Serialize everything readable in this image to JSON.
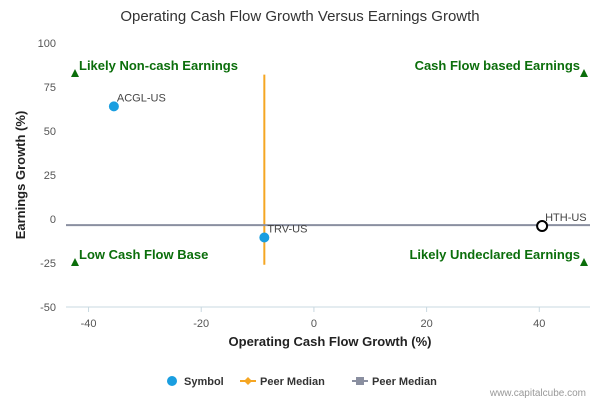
{
  "chart_data": {
    "type": "scatter",
    "title": "Operating Cash Flow Growth Versus Earnings Growth",
    "xlabel": "Operating Cash Flow Growth (%)",
    "ylabel": "Earnings Growth (%)",
    "xlim": [
      -44,
      49
    ],
    "ylim": [
      -50,
      100
    ],
    "x_ticks": [
      -40,
      -20,
      0,
      20,
      40
    ],
    "y_ticks": [
      100,
      75,
      50,
      25,
      0,
      -25,
      -50
    ],
    "grid": false,
    "points": [
      {
        "label": "ACGL-US",
        "x": -35.5,
        "y": 64,
        "style": "filled",
        "color": "#1a9ee0"
      },
      {
        "label": "TRV-US",
        "x": -8.8,
        "y": -10.5,
        "style": "filled",
        "color": "#1a9ee0"
      },
      {
        "label": "HTH-US",
        "x": 40.5,
        "y": -4,
        "style": "hollow",
        "color": "#000000"
      }
    ],
    "peer_median_x": -8.8,
    "peer_median_y": -3.5,
    "quadrant_labels": {
      "top_left": "Likely Non-cash Earnings",
      "top_right": "Cash Flow based Earnings",
      "bottom_left": "Low Cash Flow Base",
      "bottom_right": "Likely Undeclared Earnings"
    },
    "legend": {
      "placement": "bottom-center",
      "items": [
        {
          "label": "Symbol",
          "marker": "circle",
          "color": "#1a9ee0"
        },
        {
          "label": "Peer Median",
          "marker": "diamond-line",
          "color": "#f5a623"
        },
        {
          "label": "Peer Median",
          "marker": "square-line",
          "color": "#8a8fa0"
        }
      ]
    },
    "colors": {
      "quadrant_text": "#0b6e0b",
      "vertical_median": "#f5a623",
      "horizontal_median": "#8a8fa0",
      "axis": "#c8d8e0"
    }
  },
  "credit": "www.capitalcube.com"
}
